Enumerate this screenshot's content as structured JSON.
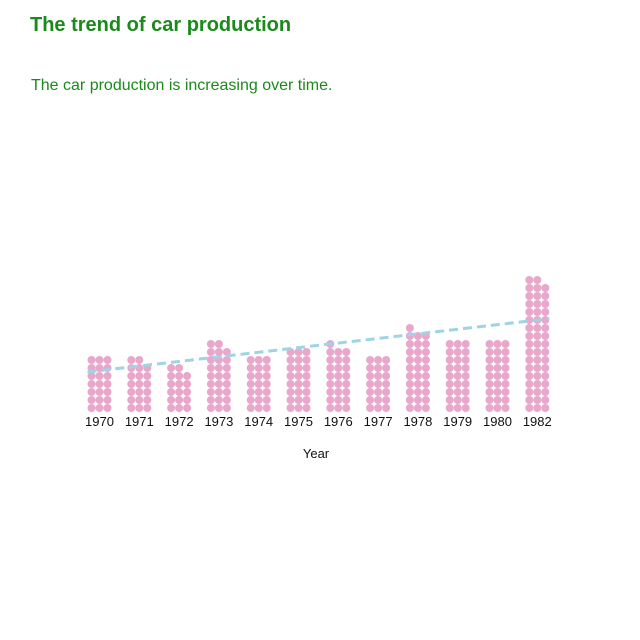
{
  "chart_data": {
    "type": "bar",
    "style": "dot-matrix pictogram",
    "title": "The trend of car production",
    "subtitle": "The car production is increasing over time.",
    "xlabel": "Year",
    "ylabel": "",
    "categories": [
      "1970",
      "1971",
      "1972",
      "1973",
      "1974",
      "1975",
      "1976",
      "1977",
      "1978",
      "1979",
      "1980",
      "1982"
    ],
    "series": [
      {
        "values": [
          21,
          20,
          17,
          26,
          21,
          24,
          25,
          21,
          31,
          27,
          27,
          50
        ]
      }
    ],
    "trendline": {
      "type": "linear",
      "style": "dashed",
      "start": 15,
      "end": 35
    },
    "grid": false,
    "legend": "none",
    "colors": {
      "dot": "#e9a7cb",
      "trend": "#9fd3e6",
      "title": "#1a8a1a"
    }
  }
}
